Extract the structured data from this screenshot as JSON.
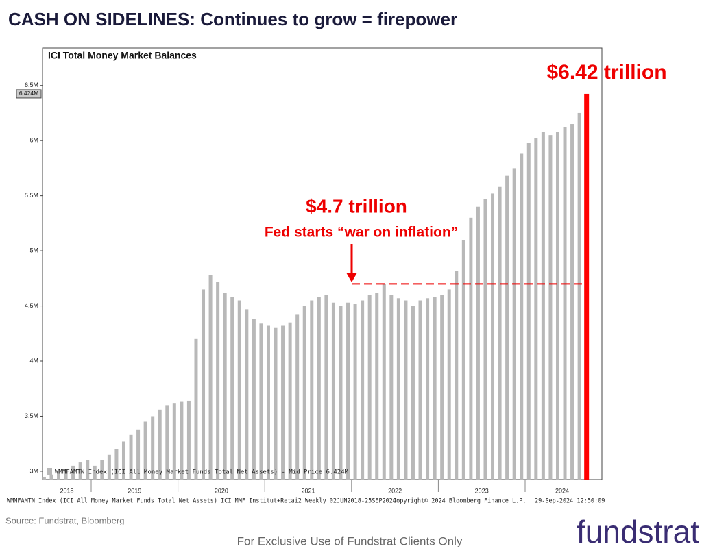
{
  "slide_title": "CASH ON SIDELINES: Continues to grow = firepower",
  "chart_data": {
    "type": "bar",
    "title": "ICI Total Money Market Balances",
    "categories": [
      null,
      null,
      null,
      null,
      null,
      null,
      null,
      null,
      null,
      null,
      null,
      null,
      null,
      null,
      null,
      null,
      null,
      null,
      null,
      null,
      null,
      null,
      null,
      null,
      null,
      null,
      null,
      null,
      null,
      null,
      null,
      null,
      null,
      null,
      null,
      null,
      null,
      null,
      null,
      null,
      null,
      null,
      null,
      null,
      null,
      null,
      null,
      null,
      null,
      null,
      null,
      null,
      null,
      null,
      null,
      null,
      null,
      null,
      null,
      null,
      null,
      null,
      null,
      null,
      null,
      null,
      null,
      null,
      null,
      null,
      null,
      null,
      null,
      null,
      null,
      null
    ],
    "year_labels": [
      "2018",
      "2019",
      "2020",
      "2021",
      "2022",
      "2023",
      "2024"
    ],
    "values": [
      2.95,
      2.97,
      3.0,
      3.02,
      3.05,
      3.08,
      3.1,
      3.05,
      3.1,
      3.15,
      3.2,
      3.27,
      3.33,
      3.38,
      3.45,
      3.5,
      3.56,
      3.6,
      3.62,
      3.63,
      3.64,
      4.2,
      4.65,
      4.78,
      4.72,
      4.62,
      4.58,
      4.55,
      4.47,
      4.38,
      4.34,
      4.32,
      4.3,
      4.32,
      4.35,
      4.42,
      4.5,
      4.55,
      4.58,
      4.6,
      4.53,
      4.5,
      4.53,
      4.52,
      4.55,
      4.6,
      4.62,
      4.7,
      4.6,
      4.57,
      4.55,
      4.5,
      4.55,
      4.57,
      4.58,
      4.6,
      4.65,
      4.82,
      5.1,
      5.3,
      5.4,
      5.47,
      5.52,
      5.58,
      5.68,
      5.75,
      5.88,
      5.98,
      6.02,
      6.08,
      6.05,
      6.08,
      6.12,
      6.15,
      6.25,
      6.424
    ],
    "color": "#b8b8b8",
    "highlight_color": "#ff0000",
    "ylim": [
      2.925,
      6.84
    ],
    "yticks": [
      {
        "value": 3,
        "label": "3M"
      },
      {
        "value": 3.5,
        "label": "3.5M"
      },
      {
        "value": 4,
        "label": "4M"
      },
      {
        "value": 4.5,
        "label": "4.5M"
      },
      {
        "value": 5,
        "label": "5M"
      },
      {
        "value": 5.5,
        "label": "5.5M"
      },
      {
        "value": 6,
        "label": "6M"
      },
      {
        "value": 6.5,
        "label": "6.5M"
      }
    ],
    "last_price": {
      "value": 6.424,
      "label": "6.424M"
    },
    "reference_line": 4.7,
    "legend": "WMMFAMTN Index (ICI All Money Market Funds Total Net Assets) - Mid Price 6.424M",
    "annotations": {
      "mid_value": "$4.7 trillion",
      "mid_note": "Fed starts “war on inflation”",
      "end_value": "$6.42 trillion"
    },
    "footer_left": "WMMFAMTN Index (ICI All Money Market Funds Total Net Assets) ICI MMF Institut+Retai2  Weekly 02JUN2018-25SEP2024",
    "footer_mid": "Copyright© 2024 Bloomberg Finance L.P.",
    "footer_right": "29-Sep-2024 12:50:09"
  },
  "source": "Source: Fundstrat, Bloomberg",
  "disclaimer": "For Exclusive Use of Fundstrat Clients Only",
  "logo": "fundstrat"
}
